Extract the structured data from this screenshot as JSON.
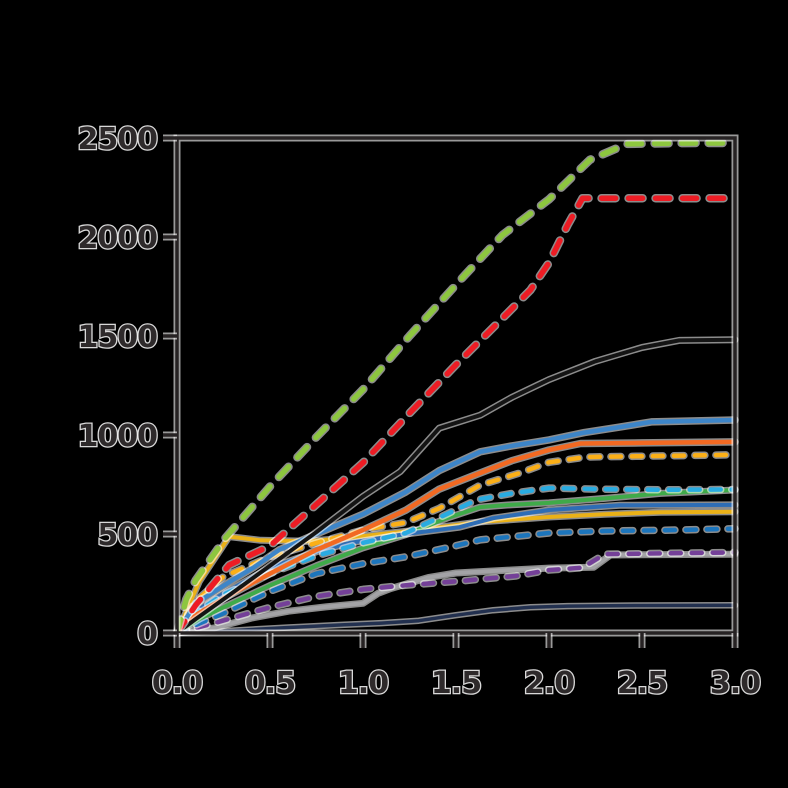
{
  "figure": {
    "title": "",
    "background": "#000000",
    "spine_color": "#262223",
    "halo_color": "#ffffff",
    "tick_label_color": "#2e2a2b"
  },
  "chart_data": {
    "type": "line",
    "title": "",
    "xlabel": "",
    "ylabel": "",
    "xlim": [
      0.0,
      3.0
    ],
    "ylim": [
      0,
      2500
    ],
    "x_ticks": [
      0.0,
      0.5,
      1.0,
      1.5,
      2.0,
      2.5,
      3.0
    ],
    "x_tick_labels": [
      "0.0",
      "0.5",
      "1.0",
      "1.5",
      "2.0",
      "2.5",
      "3.0"
    ],
    "y_ticks": [
      0,
      500,
      1000,
      1500,
      2000,
      2500
    ],
    "y_tick_labels": [
      "0",
      "500",
      "1000",
      "1500",
      "2000",
      "2500"
    ],
    "grid": false,
    "legend": "none",
    "series": [
      {
        "name": "navy-solid",
        "color": "#22304f",
        "style": "solid",
        "width": 3.5,
        "points": [
          [
            0,
            0
          ],
          [
            0.3,
            12
          ],
          [
            0.6,
            28
          ],
          [
            0.9,
            42
          ],
          [
            1.1,
            50
          ],
          [
            1.3,
            62
          ],
          [
            1.5,
            90
          ],
          [
            1.7,
            115
          ],
          [
            1.9,
            130
          ],
          [
            2.1,
            136
          ],
          [
            2.5,
            139
          ],
          [
            3.0,
            140
          ]
        ]
      },
      {
        "name": "gray-solid",
        "color": "#a3a3a6",
        "style": "solid",
        "width": 4,
        "points": [
          [
            0,
            0
          ],
          [
            0.2,
            25
          ],
          [
            0.4,
            75
          ],
          [
            0.6,
            110
          ],
          [
            0.8,
            132
          ],
          [
            1.0,
            150
          ],
          [
            1.08,
            200
          ],
          [
            1.15,
            225
          ],
          [
            1.35,
            280
          ],
          [
            1.5,
            303
          ],
          [
            1.8,
            318
          ],
          [
            2.0,
            328
          ],
          [
            2.24,
            332
          ],
          [
            2.33,
            394
          ],
          [
            2.6,
            396
          ],
          [
            3.0,
            398
          ]
        ]
      },
      {
        "name": "purple-dashed",
        "color": "#744098",
        "style": "dashed",
        "width": 4.5,
        "points": [
          [
            0,
            0
          ],
          [
            0.12,
            30
          ],
          [
            0.24,
            60
          ],
          [
            0.5,
            130
          ],
          [
            0.75,
            185
          ],
          [
            1.0,
            220
          ],
          [
            1.25,
            243
          ],
          [
            1.52,
            262
          ],
          [
            1.82,
            288
          ],
          [
            2.0,
            318
          ],
          [
            2.18,
            330
          ],
          [
            2.3,
            398
          ],
          [
            2.6,
            402
          ],
          [
            3.0,
            407
          ]
        ]
      },
      {
        "name": "blue-dashed",
        "color": "#1c75bc",
        "style": "dashed",
        "width": 4.5,
        "points": [
          [
            0,
            0
          ],
          [
            0.1,
            40
          ],
          [
            0.24,
            95
          ],
          [
            0.5,
            210
          ],
          [
            0.75,
            300
          ],
          [
            1.0,
            350
          ],
          [
            1.23,
            385
          ],
          [
            1.45,
            430
          ],
          [
            1.63,
            470
          ],
          [
            2.0,
            505
          ],
          [
            2.3,
            515
          ],
          [
            2.7,
            520
          ],
          [
            3.0,
            527
          ]
        ]
      },
      {
        "name": "yellow-solid",
        "color": "#eab117",
        "style": "solid",
        "width": 4,
        "points": [
          [
            0,
            0
          ],
          [
            0.12,
            260
          ],
          [
            0.28,
            487
          ],
          [
            0.45,
            468
          ],
          [
            0.7,
            463
          ],
          [
            0.9,
            478
          ],
          [
            1.1,
            500
          ],
          [
            1.3,
            520
          ],
          [
            1.63,
            561
          ],
          [
            2.0,
            586
          ],
          [
            2.3,
            600
          ],
          [
            2.6,
            610
          ],
          [
            3.0,
            612
          ]
        ]
      },
      {
        "name": "green-solid",
        "color": "#3faa49",
        "style": "solid",
        "width": 4,
        "points": [
          [
            0,
            0
          ],
          [
            0.12,
            70
          ],
          [
            0.25,
            130
          ],
          [
            0.5,
            240
          ],
          [
            0.75,
            340
          ],
          [
            1.0,
            430
          ],
          [
            1.23,
            497
          ],
          [
            1.45,
            580
          ],
          [
            1.63,
            636
          ],
          [
            1.8,
            648
          ],
          [
            2.0,
            657
          ],
          [
            2.3,
            680
          ],
          [
            2.6,
            705
          ],
          [
            3.0,
            722
          ]
        ]
      },
      {
        "name": "royal-blue-solid",
        "color": "#2e6db5",
        "style": "solid",
        "width": 4,
        "points": [
          [
            0,
            0
          ],
          [
            0.12,
            120
          ],
          [
            0.25,
            200
          ],
          [
            0.5,
            330
          ],
          [
            0.75,
            410
          ],
          [
            0.93,
            455
          ],
          [
            1.23,
            500
          ],
          [
            1.52,
            535
          ],
          [
            1.7,
            580
          ],
          [
            2.0,
            621
          ],
          [
            2.38,
            645
          ],
          [
            3.0,
            647
          ]
        ]
      },
      {
        "name": "cyan-dashed",
        "color": "#29abe1",
        "style": "dashed",
        "width": 4.5,
        "points": [
          [
            0,
            0
          ],
          [
            0.1,
            100
          ],
          [
            0.24,
            190
          ],
          [
            0.5,
            300
          ],
          [
            0.75,
            390
          ],
          [
            1.0,
            455
          ],
          [
            1.23,
            505
          ],
          [
            1.45,
            600
          ],
          [
            1.61,
            672
          ],
          [
            1.8,
            705
          ],
          [
            2.0,
            732
          ],
          [
            2.3,
            726
          ],
          [
            2.6,
            723
          ],
          [
            3.0,
            725
          ]
        ]
      },
      {
        "name": "amber-dashed",
        "color": "#fbaf17",
        "style": "dashed",
        "width": 4.5,
        "points": [
          [
            0,
            0
          ],
          [
            0.1,
            160
          ],
          [
            0.25,
            285
          ],
          [
            0.5,
            385
          ],
          [
            0.75,
            455
          ],
          [
            1.0,
            520
          ],
          [
            1.23,
            558
          ],
          [
            1.41,
            630
          ],
          [
            1.63,
            747
          ],
          [
            1.85,
            810
          ],
          [
            2.0,
            862
          ],
          [
            2.2,
            889
          ],
          [
            2.5,
            893
          ],
          [
            3.0,
            900
          ]
        ]
      },
      {
        "name": "orange-solid",
        "color": "#f26922",
        "style": "solid",
        "width": 4.5,
        "points": [
          [
            0,
            0
          ],
          [
            0.1,
            90
          ],
          [
            0.25,
            175
          ],
          [
            0.5,
            300
          ],
          [
            0.75,
            420
          ],
          [
            1.0,
            520
          ],
          [
            1.23,
            620
          ],
          [
            1.41,
            727
          ],
          [
            1.63,
            808
          ],
          [
            1.8,
            870
          ],
          [
            2.0,
            924
          ],
          [
            2.17,
            957
          ],
          [
            2.5,
            960
          ],
          [
            3.0,
            965
          ]
        ]
      },
      {
        "name": "steel-blue-solid",
        "color": "#3d85c8",
        "style": "solid",
        "width": 4.5,
        "points": [
          [
            0,
            0
          ],
          [
            0.1,
            150
          ],
          [
            0.29,
            262
          ],
          [
            0.41,
            330
          ],
          [
            0.55,
            420
          ],
          [
            0.8,
            520
          ],
          [
            1.0,
            600
          ],
          [
            1.23,
            712
          ],
          [
            1.41,
            820
          ],
          [
            1.63,
            915
          ],
          [
            1.8,
            945
          ],
          [
            2.0,
            975
          ],
          [
            2.19,
            1012
          ],
          [
            2.38,
            1040
          ],
          [
            2.55,
            1066
          ],
          [
            3.0,
            1076
          ]
        ]
      },
      {
        "name": "black-solid",
        "color": "#141414",
        "style": "solid",
        "width": 4,
        "points": [
          [
            0,
            0
          ],
          [
            0.1,
            70
          ],
          [
            0.25,
            170
          ],
          [
            0.5,
            340
          ],
          [
            0.75,
            510
          ],
          [
            1.0,
            690
          ],
          [
            1.2,
            815
          ],
          [
            1.41,
            1035
          ],
          [
            1.63,
            1100
          ],
          [
            1.8,
            1190
          ],
          [
            2.0,
            1280
          ],
          [
            2.25,
            1372
          ],
          [
            2.5,
            1442
          ],
          [
            2.7,
            1478
          ],
          [
            3.0,
            1481
          ]
        ]
      },
      {
        "name": "red-dashed",
        "color": "#ed1c24",
        "style": "dashed",
        "width": 5.5,
        "points": [
          [
            0,
            0
          ],
          [
            0.1,
            140
          ],
          [
            0.28,
            343
          ],
          [
            0.5,
            440
          ],
          [
            0.75,
            650
          ],
          [
            1.0,
            860
          ],
          [
            1.25,
            1110
          ],
          [
            1.5,
            1355
          ],
          [
            1.75,
            1590
          ],
          [
            1.9,
            1732
          ],
          [
            2.0,
            1870
          ],
          [
            2.1,
            2060
          ],
          [
            2.18,
            2196
          ],
          [
            2.5,
            2196
          ],
          [
            3.0,
            2196
          ]
        ]
      },
      {
        "name": "lime-dashed",
        "color": "#8dc63f",
        "style": "dashed",
        "width": 5.5,
        "points": [
          [
            0,
            0
          ],
          [
            0.05,
            170
          ],
          [
            0.1,
            265
          ],
          [
            0.26,
            480
          ],
          [
            0.5,
            740
          ],
          [
            0.75,
            990
          ],
          [
            1.0,
            1230
          ],
          [
            1.25,
            1500
          ],
          [
            1.55,
            1810
          ],
          [
            1.75,
            2010
          ],
          [
            2.0,
            2190
          ],
          [
            2.22,
            2390
          ],
          [
            2.42,
            2470
          ],
          [
            2.7,
            2474
          ],
          [
            3.0,
            2475
          ]
        ]
      }
    ]
  }
}
